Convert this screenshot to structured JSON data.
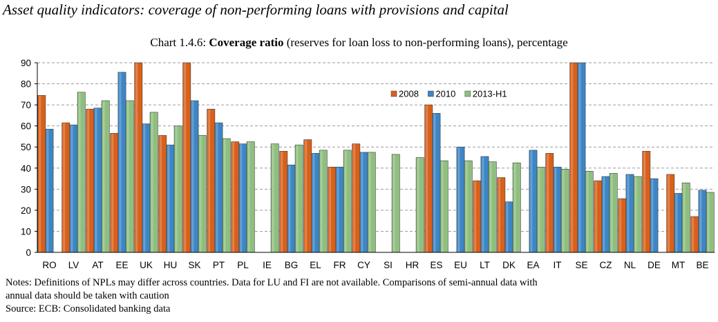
{
  "heading": "Asset quality indicators: coverage of non-performing loans with provisions and capital",
  "chart_title": {
    "prefix": "Chart 1.4.6:",
    "bold": "Coverage ratio",
    "rest": "(reserves for loan loss to non-performing loans), percentage"
  },
  "notes": {
    "line1": "Notes: Definitions of NPLs may differ across countries. Data for LU and FI are not available. Comparisons of semi-annual data with",
    "line2": "annual data should be taken with caution",
    "source": "Source: ECB: Consolidated banking data"
  },
  "colors": {
    "s2008": "#d9601a",
    "s2010": "#3d86c6",
    "s2013": "#8fbf7f",
    "grid": "#9a9a9a"
  },
  "chart_data": {
    "type": "bar",
    "title": "Coverage ratio (reserves for loan loss to non-performing loans), percentage",
    "xlabel": "",
    "ylabel": "",
    "ylim": [
      0,
      90
    ],
    "yticks": [
      0,
      10,
      20,
      30,
      40,
      50,
      60,
      70,
      80,
      90
    ],
    "grid": true,
    "legend_position": "upper-middle",
    "categories": [
      "RO",
      "LV",
      "AT",
      "EE",
      "UK",
      "HU",
      "SK",
      "PT",
      "PL",
      "IE",
      "BG",
      "EL",
      "FR",
      "CY",
      "SI",
      "HR",
      "ES",
      "EU",
      "LT",
      "DK",
      "EA",
      "IT",
      "SE",
      "CZ",
      "NL",
      "DE",
      "MT",
      "BE"
    ],
    "series": [
      {
        "name": "2008",
        "values": [
          74.5,
          61.5,
          68,
          56.5,
          90,
          55.5,
          90,
          68,
          52.5,
          null,
          48,
          53.5,
          40.5,
          51.5,
          null,
          null,
          70,
          null,
          34,
          35.5,
          null,
          47,
          90,
          34,
          25.5,
          48,
          37,
          17
        ]
      },
      {
        "name": "2010",
        "values": [
          58.5,
          60.5,
          68.5,
          85.5,
          61,
          51,
          72,
          61.5,
          51.5,
          null,
          41.5,
          47,
          40.5,
          47.5,
          null,
          null,
          66,
          50,
          45.5,
          24,
          48.5,
          40.5,
          90,
          36,
          37,
          35,
          28,
          29.5
        ]
      },
      {
        "name": "2013-H1",
        "values": [
          null,
          76,
          72,
          72,
          66.5,
          60,
          55.5,
          54,
          52.5,
          51.5,
          51,
          48.5,
          48.5,
          47.5,
          46.5,
          45,
          43.5,
          43.5,
          43,
          42.5,
          40.5,
          39.5,
          38.5,
          37.5,
          36,
          null,
          33,
          28.5
        ]
      }
    ]
  }
}
